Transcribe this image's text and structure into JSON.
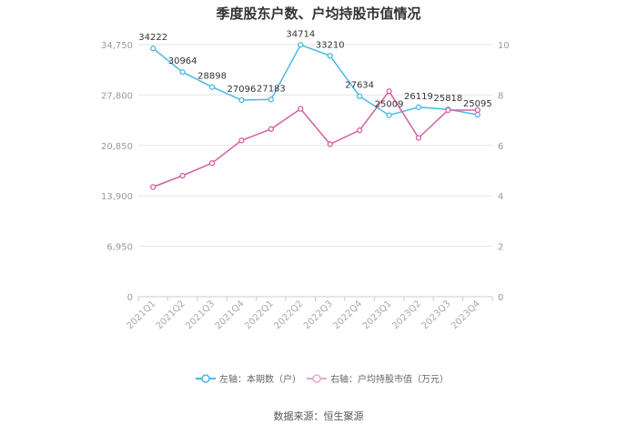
{
  "chart_data": {
    "type": "line",
    "title": "季度股东户数、户均持股市值情况",
    "categories": [
      "2021Q1",
      "2021Q2",
      "2021Q3",
      "2021Q4",
      "2022Q1",
      "2022Q2",
      "2022Q3",
      "2022Q4",
      "2023Q1",
      "2023Q2",
      "2023Q3",
      "2023Q4"
    ],
    "left_axis": {
      "ticks": [
        "0",
        "6,950",
        "13,900",
        "20,850",
        "27,800",
        "34,750"
      ],
      "range": [
        0,
        34750
      ]
    },
    "right_axis": {
      "ticks": [
        "0",
        "2",
        "4",
        "6",
        "8",
        "10"
      ],
      "range": [
        0,
        10
      ]
    },
    "series": [
      {
        "name": "左轴：本期数（户）",
        "axis": "left",
        "color": "#4ab8e6",
        "values": [
          34222,
          30964,
          28898,
          27096,
          27183,
          34714,
          33210,
          27634,
          25009,
          26119,
          25818,
          25095
        ],
        "labels": [
          "34222",
          "30964",
          "28898",
          "27096",
          "27183",
          "34714",
          "33210",
          "27634",
          "25009",
          "26119",
          "25818",
          "25095"
        ]
      },
      {
        "name": "右轴：户均持股市值（万元）",
        "axis": "right",
        "color": "#d460a4",
        "values": [
          4.35,
          4.8,
          5.3,
          6.2,
          6.65,
          7.45,
          6.05,
          6.6,
          8.15,
          6.3,
          7.4,
          7.4
        ]
      }
    ],
    "grid": true,
    "legend_position": "bottom"
  },
  "source_text": "数据来源：恒生聚源"
}
